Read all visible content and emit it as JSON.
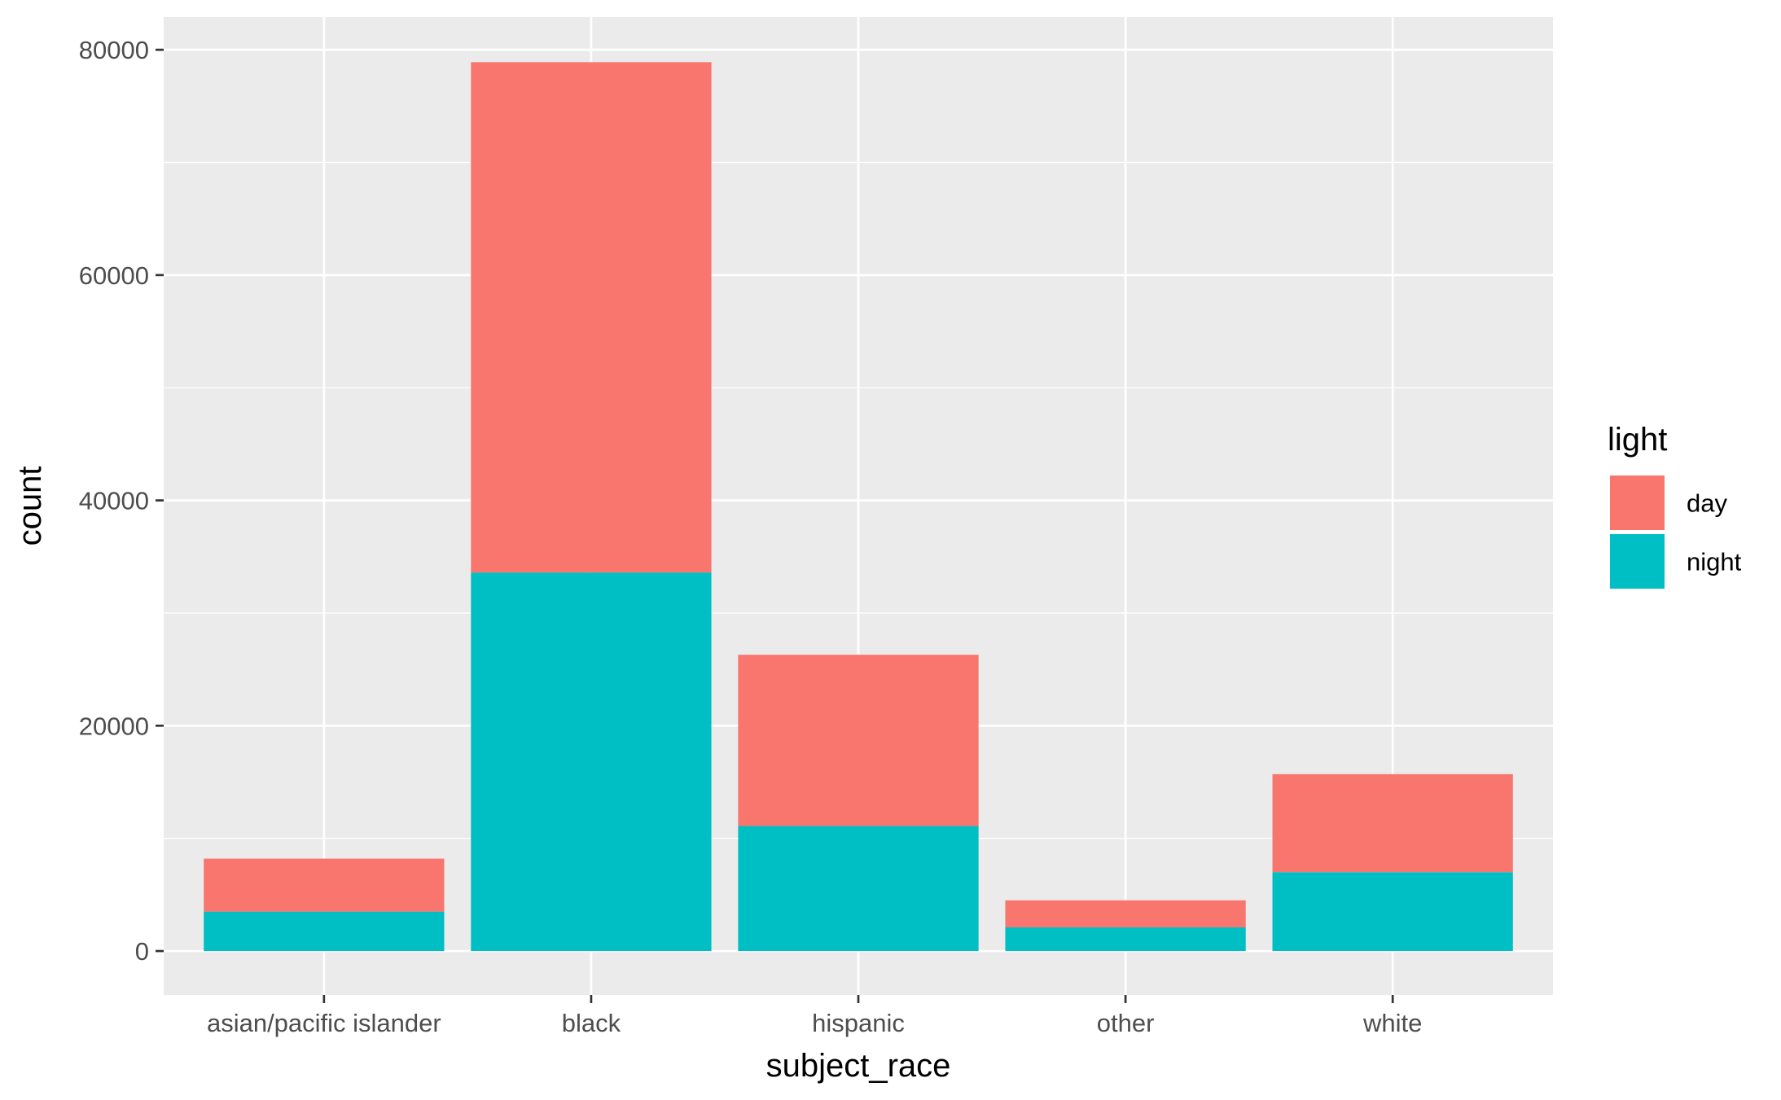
{
  "chart_data": {
    "type": "bar",
    "stacked": true,
    "categories": [
      "asian/pacific islander",
      "black",
      "hispanic",
      "other",
      "white"
    ],
    "series": [
      {
        "name": "day",
        "color": "#F8766D",
        "values": [
          4700,
          45300,
          15200,
          2400,
          8700
        ]
      },
      {
        "name": "night",
        "color": "#00BFC4",
        "values": [
          3500,
          33600,
          11100,
          2100,
          7000
        ]
      }
    ],
    "title": "",
    "xlabel": "subject_race",
    "ylabel": "count",
    "ylim": [
      -3900,
      82900
    ],
    "yticks": [
      0,
      20000,
      40000,
      60000,
      80000
    ],
    "ytick_labels": [
      "0",
      "20000",
      "40000",
      "60000",
      "80000"
    ],
    "grid": true,
    "panel_background": "#EBEBEB",
    "grid_color": "#FFFFFF",
    "legend": {
      "title": "light",
      "placement": "right"
    }
  }
}
